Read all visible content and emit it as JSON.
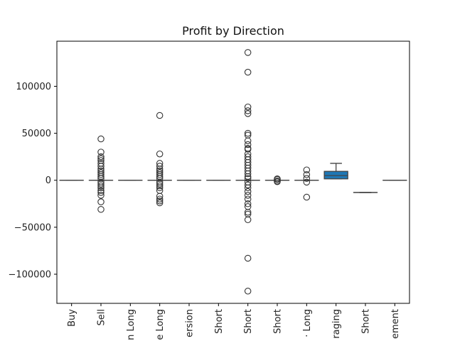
{
  "chart_data": {
    "type": "box",
    "title": "Profit by Direction",
    "xlabel": "",
    "ylabel": "",
    "ylim": [
      -131000,
      148000
    ],
    "yticks": [
      -100000,
      -50000,
      0,
      50000,
      100000
    ],
    "ytick_labels": [
      "−100000",
      "−50000",
      "0",
      "50000",
      "100000"
    ],
    "grid": false,
    "colors": {
      "box_fill": "#1f77b4",
      "axis": "#000000",
      "outlier": "#444444"
    },
    "categories": [
      "Buy",
      "Sell",
      "n Long",
      "e Long",
      "ersion",
      "Short",
      "Short",
      "Short",
      "· Long",
      "raging",
      "Short",
      "ement"
    ],
    "boxes": [
      {
        "q1": 0,
        "median": 0,
        "q3": 0,
        "whislo": 0,
        "whishi": 0,
        "fliers": []
      },
      {
        "q1": 0,
        "median": 0,
        "q3": 0,
        "whislo": 0,
        "whishi": 0,
        "fliers": [
          44000,
          30000,
          25000,
          23000,
          21000,
          18000,
          15000,
          12000,
          10000,
          8000,
          6000,
          4000,
          2000,
          -2000,
          -4000,
          -6000,
          -8000,
          -11000,
          -13000,
          -16000,
          -23000,
          -31000
        ]
      },
      {
        "q1": 0,
        "median": 0,
        "q3": 0,
        "whislo": 0,
        "whishi": 0,
        "fliers": []
      },
      {
        "q1": 0,
        "median": 0,
        "q3": 0,
        "whislo": 0,
        "whishi": 0,
        "fliers": [
          69000,
          28000,
          18000,
          15000,
          12000,
          10000,
          8000,
          6000,
          4000,
          2000,
          -2000,
          -4000,
          -6000,
          -8000,
          -11000,
          -17000,
          -20000,
          -22000,
          -24000
        ]
      },
      {
        "q1": 0,
        "median": 0,
        "q3": 0,
        "whislo": 0,
        "whishi": 0,
        "fliers": []
      },
      {
        "q1": 0,
        "median": 0,
        "q3": 0,
        "whislo": 0,
        "whishi": 0,
        "fliers": []
      },
      {
        "q1": 0,
        "median": 0,
        "q3": 0,
        "whislo": 0,
        "whishi": 0,
        "fliers": [
          136000,
          115000,
          78000,
          74000,
          71000,
          50000,
          48000,
          42000,
          38000,
          34000,
          33000,
          28000,
          25000,
          22000,
          19000,
          16000,
          13000,
          10000,
          7000,
          4000,
          2000,
          -2000,
          -5000,
          -8000,
          -12000,
          -16000,
          -20000,
          -25000,
          -28000,
          -34000,
          -36000,
          -42000,
          -83000,
          -118000
        ]
      },
      {
        "q1": 0,
        "median": 0,
        "q3": 0,
        "whislo": 0,
        "whishi": 0,
        "fliers": [
          1500,
          800,
          -800,
          -1500
        ]
      },
      {
        "q1": 0,
        "median": 0,
        "q3": 0,
        "whislo": 0,
        "whishi": 0,
        "fliers": [
          11000,
          6000,
          2000,
          -2000,
          -18000
        ]
      },
      {
        "q1": 1500,
        "median": 5000,
        "q3": 9500,
        "whislo": 1500,
        "whishi": 18000,
        "fliers": []
      },
      {
        "q1": -13000,
        "median": -13000,
        "q3": -13000,
        "whislo": -13000,
        "whishi": -13000,
        "fliers": []
      },
      {
        "q1": 0,
        "median": 0,
        "q3": 0,
        "whislo": 0,
        "whishi": 0,
        "fliers": []
      }
    ]
  }
}
